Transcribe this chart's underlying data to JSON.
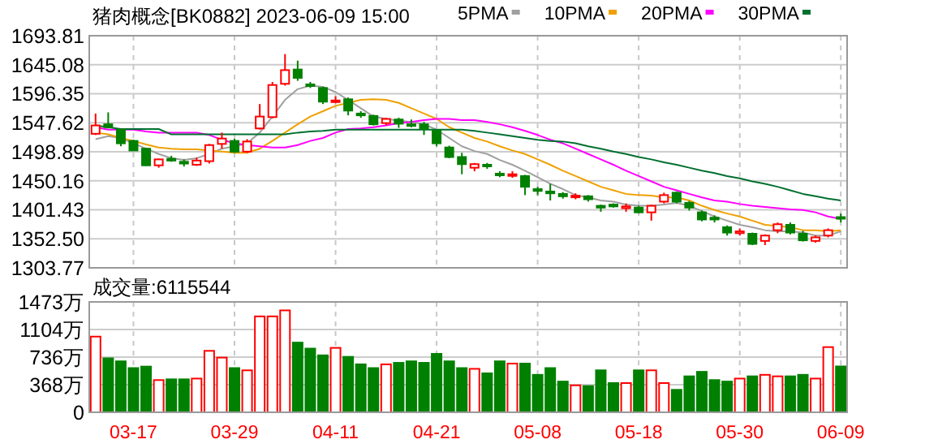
{
  "chart_data": [
    {
      "type": "candlestick",
      "title": "猪肉概念[BK0882] 2023-06-09 15:00",
      "categories": [
        null,
        null,
        null,
        null,
        null,
        null,
        null,
        null,
        null,
        null,
        null,
        null,
        null,
        null,
        null,
        null,
        null,
        null,
        null,
        null,
        null,
        null,
        null,
        null,
        null,
        null,
        null,
        null,
        null,
        null,
        null,
        null,
        null,
        null,
        null,
        null,
        null,
        null,
        null,
        null,
        null,
        null,
        null,
        null,
        null,
        null,
        null,
        null,
        null,
        null,
        null,
        null,
        null,
        null,
        null,
        null,
        null,
        null,
        null,
        null
      ],
      "ohlc": [
        [
          1529,
          1563,
          1527,
          1543
        ],
        [
          1545,
          1565,
          1538,
          1540
        ],
        [
          1536,
          1538,
          1508,
          1513
        ],
        [
          1517,
          1519,
          1500,
          1501
        ],
        [
          1504,
          1505,
          1475,
          1476
        ],
        [
          1476,
          1487,
          1472,
          1486
        ],
        [
          1487,
          1492,
          1482,
          1484
        ],
        [
          1482,
          1486,
          1474,
          1479
        ],
        [
          1477,
          1489,
          1475,
          1484
        ],
        [
          1483,
          1512,
          1479,
          1510
        ],
        [
          1512,
          1531,
          1504,
          1521
        ],
        [
          1517,
          1521,
          1497,
          1499
        ],
        [
          1499,
          1520,
          1497,
          1516
        ],
        [
          1538,
          1579,
          1536,
          1558
        ],
        [
          1557,
          1616,
          1555,
          1611
        ],
        [
          1613,
          1663,
          1610,
          1636
        ],
        [
          1637,
          1652,
          1618,
          1623
        ],
        [
          1612,
          1616,
          1606,
          1610
        ],
        [
          1606,
          1608,
          1579,
          1583
        ],
        [
          1583,
          1592,
          1580,
          1585
        ],
        [
          1587,
          1590,
          1560,
          1568
        ],
        [
          1563,
          1567,
          1556,
          1560
        ],
        [
          1559,
          1561,
          1543,
          1545
        ],
        [
          1547,
          1556,
          1543,
          1554
        ],
        [
          1553,
          1556,
          1539,
          1546
        ],
        [
          1545,
          1553,
          1540,
          1543
        ],
        [
          1545,
          1549,
          1527,
          1537
        ],
        [
          1534,
          1537,
          1508,
          1513
        ],
        [
          1506,
          1509,
          1488,
          1490
        ],
        [
          1490,
          1497,
          1461,
          1478
        ],
        [
          1472,
          1480,
          1466,
          1478
        ],
        [
          1477,
          1480,
          1470,
          1475
        ],
        [
          1462,
          1466,
          1456,
          1460
        ],
        [
          1460,
          1466,
          1455,
          1461
        ],
        [
          1458,
          1460,
          1426,
          1440
        ],
        [
          1436,
          1440,
          1426,
          1433
        ],
        [
          1432,
          1445,
          1417,
          1429
        ],
        [
          1428,
          1431,
          1420,
          1424
        ],
        [
          1423,
          1429,
          1419,
          1425
        ],
        [
          1424,
          1426,
          1415,
          1419
        ],
        [
          1408,
          1410,
          1398,
          1405
        ],
        [
          1410,
          1412,
          1405,
          1407
        ],
        [
          1404,
          1412,
          1398,
          1407
        ],
        [
          1405,
          1408,
          1395,
          1397
        ],
        [
          1397,
          1410,
          1383,
          1408
        ],
        [
          1415,
          1430,
          1412,
          1426
        ],
        [
          1430,
          1432,
          1412,
          1415
        ],
        [
          1413,
          1416,
          1400,
          1405
        ],
        [
          1397,
          1400,
          1382,
          1385
        ],
        [
          1388,
          1392,
          1380,
          1385
        ],
        [
          1372,
          1375,
          1358,
          1363
        ],
        [
          1362,
          1370,
          1358,
          1365
        ],
        [
          1361,
          1363,
          1342,
          1344
        ],
        [
          1349,
          1360,
          1342,
          1358
        ],
        [
          1367,
          1380,
          1362,
          1377
        ],
        [
          1376,
          1380,
          1360,
          1363
        ],
        [
          1361,
          1366,
          1348,
          1350
        ],
        [
          1349,
          1358,
          1346,
          1355
        ],
        [
          1358,
          1370,
          1355,
          1367
        ],
        [
          1389,
          1395,
          1380,
          1387
        ]
      ],
      "series": [
        {
          "name": "5PMA",
          "type": "line",
          "color": "#a0a0a0",
          "values": [
            1520,
            1525,
            1522,
            1513,
            1504,
            1495,
            1488,
            1485,
            1488,
            1495,
            1504,
            1508,
            1513,
            1531,
            1558,
            1586,
            1604,
            1610,
            1608,
            1599,
            1586,
            1572,
            1558,
            1554,
            1551,
            1549,
            1545,
            1536,
            1522,
            1508,
            1500,
            1495,
            1485,
            1477,
            1467,
            1456,
            1445,
            1436,
            1426,
            1422,
            1417,
            1415,
            1410,
            1408,
            1408,
            1410,
            1413,
            1408,
            1399,
            1390,
            1383,
            1376,
            1372,
            1367,
            1365,
            1365,
            1363,
            1358,
            1358,
            1365
          ]
        },
        {
          "name": "10PMA",
          "type": "line",
          "color": "#f0a000",
          "values": [
            1531,
            1528,
            1522,
            1517,
            1511,
            1506,
            1504,
            1503,
            1503,
            1501,
            1499,
            1497,
            1497,
            1504,
            1517,
            1531,
            1545,
            1558,
            1567,
            1576,
            1581,
            1586,
            1587,
            1586,
            1581,
            1572,
            1563,
            1554,
            1540,
            1531,
            1522,
            1516,
            1508,
            1501,
            1495,
            1486,
            1477,
            1467,
            1458,
            1449,
            1440,
            1434,
            1428,
            1426,
            1425,
            1422,
            1422,
            1417,
            1408,
            1401,
            1395,
            1390,
            1383,
            1376,
            1374,
            1372,
            1367,
            1367,
            1365,
            1367
          ]
        },
        {
          "name": "20PMA",
          "type": "line",
          "color": "#ff00ff",
          "values": [
            1540,
            1536,
            1536,
            1536,
            1533,
            1531,
            1531,
            1531,
            1531,
            1527,
            1519,
            1513,
            1510,
            1508,
            1506,
            1506,
            1510,
            1517,
            1522,
            1531,
            1537,
            1538,
            1540,
            1543,
            1547,
            1549,
            1552,
            1554,
            1554,
            1552,
            1552,
            1549,
            1545,
            1540,
            1534,
            1527,
            1519,
            1513,
            1504,
            1495,
            1486,
            1477,
            1467,
            1458,
            1449,
            1440,
            1434,
            1428,
            1422,
            1417,
            1415,
            1411,
            1408,
            1406,
            1404,
            1402,
            1401,
            1397,
            1390,
            1386
          ]
        },
        {
          "name": "30PMA",
          "type": "line",
          "color": "#007030",
          "values": [
            1543,
            1540,
            1537,
            1537,
            1537,
            1537,
            1528,
            1528,
            1528,
            1528,
            1528,
            1528,
            1528,
            1528,
            1528,
            1528,
            1531,
            1533,
            1534,
            1536,
            1536,
            1536,
            1536,
            1536,
            1536,
            1536,
            1536,
            1536,
            1536,
            1536,
            1534,
            1531,
            1528,
            1525,
            1522,
            1519,
            1517,
            1516,
            1513,
            1508,
            1504,
            1499,
            1495,
            1490,
            1486,
            1481,
            1477,
            1472,
            1467,
            1463,
            1458,
            1454,
            1449,
            1445,
            1440,
            1434,
            1428,
            1424,
            1420,
            1417
          ]
        }
      ],
      "ylim": [
        1303.77,
        1693.81
      ],
      "yticks": [
        1303.77,
        {
          "value": 1352.5,
          "label": "1352.50"
        },
        1401.43,
        1450.16,
        1498.89,
        1547.62,
        1596.35,
        1645.08,
        1693.81
      ],
      "grid": true,
      "legend": "top right",
      "tick_labels": "y"
    },
    {
      "type": "bar",
      "title": "成交量:6115544",
      "categories": [
        null,
        null,
        null,
        "03-17",
        null,
        null,
        null,
        null,
        null,
        null,
        null,
        "03-29",
        null,
        null,
        null,
        null,
        null,
        null,
        null,
        "04-11",
        null,
        null,
        null,
        null,
        null,
        null,
        null,
        "04-21",
        null,
        null,
        null,
        null,
        null,
        null,
        null,
        "05-08",
        null,
        null,
        null,
        null,
        null,
        null,
        null,
        "05-18",
        null,
        null,
        null,
        null,
        null,
        null,
        null,
        "05-30",
        null,
        null,
        null,
        null,
        null,
        null,
        null,
        "06-09"
      ],
      "values": [
        1010,
        720,
        680,
        590,
        610,
        430,
        440,
        440,
        450,
        820,
        730,
        590,
        560,
        1280,
        1280,
        1360,
        930,
        850,
        760,
        860,
        740,
        640,
        590,
        640,
        660,
        680,
        660,
        780,
        680,
        590,
        580,
        520,
        680,
        650,
        650,
        500,
        590,
        410,
        360,
        350,
        560,
        390,
        390,
        560,
        560,
        390,
        300,
        480,
        540,
        430,
        410,
        450,
        480,
        500,
        480,
        480,
        500,
        450,
        870,
        612
      ],
      "colors": [
        "#ff0000",
        "#008000",
        "#008000",
        "#008000",
        "#008000",
        "#ff0000",
        "#008000",
        "#008000",
        "#ff0000",
        "#ff0000",
        "#ff0000",
        "#008000",
        "#ff0000",
        "#ff0000",
        "#ff0000",
        "#ff0000",
        "#008000",
        "#008000",
        "#008000",
        "#ff0000",
        "#008000",
        "#008000",
        "#008000",
        "#ff0000",
        "#008000",
        "#008000",
        "#008000",
        "#008000",
        "#008000",
        "#008000",
        "#ff0000",
        "#008000",
        "#008000",
        "#ff0000",
        "#008000",
        "#008000",
        "#008000",
        "#008000",
        "#ff0000",
        "#008000",
        "#008000",
        "#008000",
        "#ff0000",
        "#008000",
        "#ff0000",
        "#ff0000",
        "#008000",
        "#008000",
        "#008000",
        "#008000",
        "#008000",
        "#ff0000",
        "#008000",
        "#ff0000",
        "#ff0000",
        "#008000",
        "#008000",
        "#ff0000",
        "#ff0000",
        "#008000"
      ],
      "ylim": [
        0,
        1473
      ],
      "yticks": [
        0,
        {
          "value": 368,
          "label": "368万"
        },
        {
          "value": 736,
          "label": "736万"
        },
        {
          "value": 1104,
          "label": "1104万"
        },
        {
          "value": 1473,
          "label": "1473万"
        }
      ],
      "grid": true
    }
  ]
}
